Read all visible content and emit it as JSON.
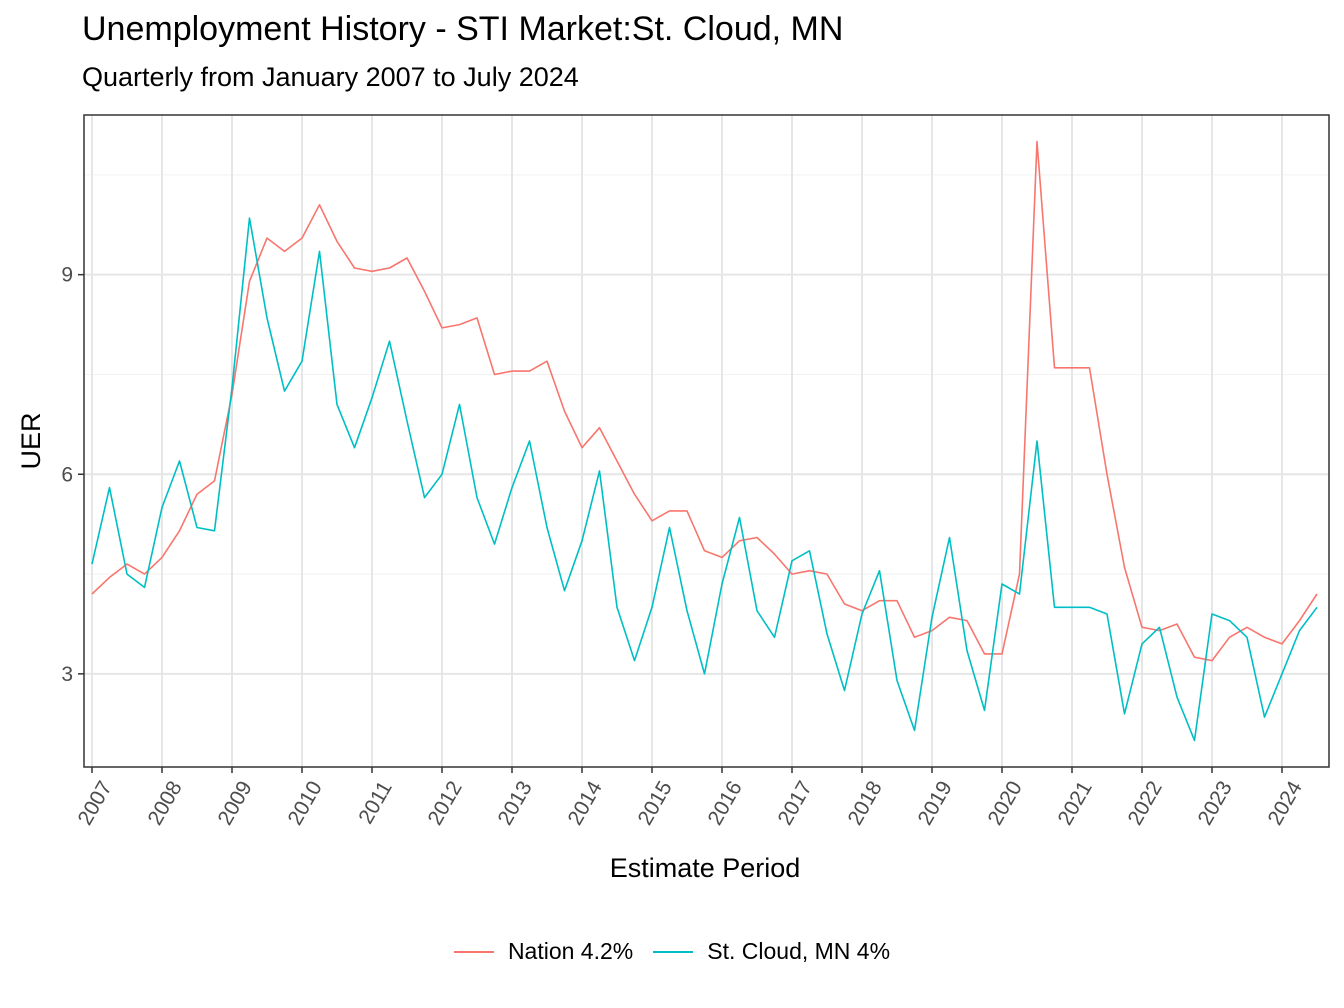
{
  "chart_data": {
    "type": "line",
    "title": "Unemployment History - STI Market:St. Cloud, MN",
    "subtitle": "Quarterly from January 2007 to July 2024",
    "xlabel": "Estimate Period",
    "ylabel": "UER",
    "x_ticks": [
      "2007",
      "2008",
      "2009",
      "2010",
      "2011",
      "2012",
      "2013",
      "2014",
      "2015",
      "2016",
      "2017",
      "2018",
      "2019",
      "2020",
      "2021",
      "2022",
      "2023",
      "2024"
    ],
    "y_ticks": [
      3,
      6,
      9
    ],
    "ylim": [
      1.6,
      11.4
    ],
    "grid": true,
    "legend_position": "bottom",
    "series": [
      {
        "name": "Nation 4.2%",
        "color": "#F8766D",
        "x": [
          "2007-01",
          "2007-04",
          "2007-07",
          "2007-10",
          "2008-01",
          "2008-04",
          "2008-07",
          "2008-10",
          "2009-01",
          "2009-04",
          "2009-07",
          "2009-10",
          "2010-01",
          "2010-04",
          "2010-07",
          "2010-10",
          "2011-01",
          "2011-04",
          "2011-07",
          "2011-10",
          "2012-01",
          "2012-04",
          "2012-07",
          "2012-10",
          "2013-01",
          "2013-04",
          "2013-07",
          "2013-10",
          "2014-01",
          "2014-04",
          "2014-07",
          "2014-10",
          "2015-01",
          "2015-04",
          "2015-07",
          "2015-10",
          "2016-01",
          "2016-04",
          "2016-07",
          "2016-10",
          "2017-01",
          "2017-04",
          "2017-07",
          "2017-10",
          "2018-01",
          "2018-04",
          "2018-07",
          "2018-10",
          "2019-01",
          "2019-04",
          "2019-07",
          "2019-10",
          "2020-01",
          "2020-04",
          "2020-07",
          "2020-10",
          "2021-01",
          "2021-04",
          "2021-07",
          "2021-10",
          "2022-01",
          "2022-04",
          "2022-07",
          "2022-10",
          "2023-01",
          "2023-04",
          "2023-07",
          "2023-10",
          "2024-01",
          "2024-04",
          "2024-07"
        ],
        "values": [
          4.2,
          4.45,
          4.65,
          4.5,
          4.75,
          5.15,
          5.7,
          5.9,
          7.2,
          8.9,
          9.55,
          9.35,
          9.55,
          10.05,
          9.5,
          9.1,
          9.05,
          9.1,
          9.25,
          8.75,
          8.2,
          8.25,
          8.35,
          7.5,
          7.55,
          7.55,
          7.7,
          6.95,
          6.4,
          6.7,
          6.2,
          5.7,
          5.3,
          5.45,
          5.45,
          4.85,
          4.75,
          5.0,
          5.05,
          4.8,
          4.5,
          4.55,
          4.5,
          4.05,
          3.95,
          4.1,
          4.1,
          3.55,
          3.65,
          3.85,
          3.8,
          3.3,
          3.3,
          4.5,
          11.0,
          7.6,
          7.6,
          7.6,
          6.0,
          4.6,
          3.7,
          3.65,
          3.75,
          3.25,
          3.2,
          3.55,
          3.7,
          3.55,
          3.45,
          3.8,
          4.2
        ]
      },
      {
        "name": "St. Cloud, MN 4%",
        "color": "#00BFC4",
        "x": [
          "2007-01",
          "2007-04",
          "2007-07",
          "2007-10",
          "2008-01",
          "2008-04",
          "2008-07",
          "2008-10",
          "2009-01",
          "2009-04",
          "2009-07",
          "2009-10",
          "2010-01",
          "2010-04",
          "2010-07",
          "2010-10",
          "2011-01",
          "2011-04",
          "2011-07",
          "2011-10",
          "2012-01",
          "2012-04",
          "2012-07",
          "2012-10",
          "2013-01",
          "2013-04",
          "2013-07",
          "2013-10",
          "2014-01",
          "2014-04",
          "2014-07",
          "2014-10",
          "2015-01",
          "2015-04",
          "2015-07",
          "2015-10",
          "2016-01",
          "2016-04",
          "2016-07",
          "2016-10",
          "2017-01",
          "2017-04",
          "2017-07",
          "2017-10",
          "2018-01",
          "2018-04",
          "2018-07",
          "2018-10",
          "2019-01",
          "2019-04",
          "2019-07",
          "2019-10",
          "2020-01",
          "2020-04",
          "2020-07",
          "2020-10",
          "2021-01",
          "2021-04",
          "2021-07",
          "2021-10",
          "2022-01",
          "2022-04",
          "2022-07",
          "2022-10",
          "2023-01",
          "2023-04",
          "2023-07",
          "2023-10",
          "2024-01",
          "2024-04",
          "2024-07"
        ],
        "values": [
          4.65,
          5.8,
          4.5,
          4.3,
          5.5,
          6.2,
          5.2,
          5.15,
          7.3,
          9.85,
          8.35,
          7.25,
          7.7,
          9.35,
          7.05,
          6.4,
          7.15,
          8.0,
          6.8,
          5.65,
          6.0,
          7.05,
          5.65,
          4.95,
          5.8,
          6.5,
          5.2,
          4.25,
          5.0,
          6.05,
          4.0,
          3.2,
          4.0,
          5.2,
          3.95,
          3.0,
          4.35,
          5.35,
          3.95,
          3.55,
          4.7,
          4.85,
          3.6,
          2.75,
          3.9,
          4.55,
          2.9,
          2.15,
          3.85,
          5.05,
          3.35,
          2.45,
          4.35,
          4.2,
          6.5,
          4.0,
          4.0,
          4.0,
          3.9,
          2.4,
          3.45,
          3.7,
          2.65,
          2.0,
          3.9,
          3.8,
          3.55,
          2.35,
          3.0,
          3.65,
          4.0
        ]
      }
    ]
  }
}
